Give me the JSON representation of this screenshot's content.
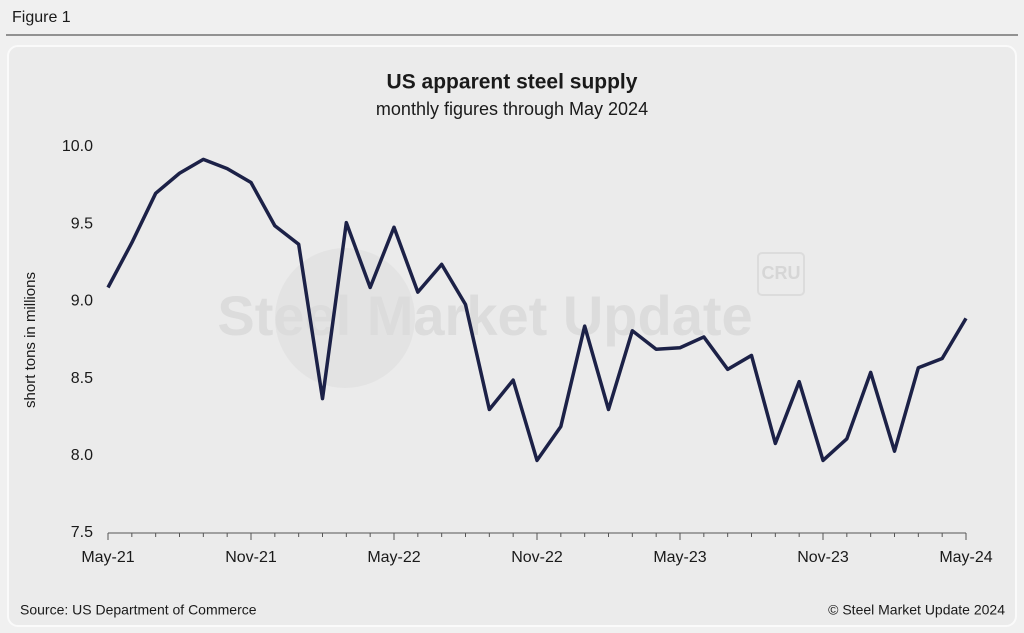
{
  "figure_label": "Figure 1",
  "source": "Source: US Department of Commerce",
  "copyright": "© Steel Market Update 2024",
  "chart_data": {
    "type": "line",
    "title": "US apparent steel supply",
    "subtitle": "monthly figures through May 2024",
    "y_label": "short tons in millions",
    "watermark": "Steel Market Update",
    "watermark_logo": "CRU",
    "categories": [
      "May-21",
      null,
      null,
      null,
      null,
      null,
      "Nov-21",
      null,
      null,
      null,
      null,
      null,
      "May-22",
      null,
      null,
      null,
      null,
      null,
      "Nov-22",
      null,
      null,
      null,
      null,
      null,
      "May-23",
      null,
      null,
      null,
      null,
      null,
      "Nov-23",
      null,
      null,
      null,
      null,
      null,
      "May-24"
    ],
    "values": [
      9.09,
      9.38,
      9.7,
      9.83,
      9.92,
      9.86,
      9.77,
      9.49,
      9.37,
      8.37,
      9.51,
      9.09,
      9.48,
      9.06,
      9.24,
      8.98,
      8.3,
      8.49,
      7.97,
      8.19,
      8.84,
      8.3,
      8.81,
      8.69,
      8.7,
      8.77,
      8.56,
      8.65,
      8.08,
      8.48,
      7.97,
      8.11,
      8.54,
      8.03,
      8.57,
      8.63,
      8.89
    ],
    "color": "#1c2147",
    "ylim": [
      7.5,
      10
    ],
    "yticks": [
      7.5,
      {
        "value": 8,
        "label": "8.0"
      },
      8.5,
      {
        "value": 9,
        "label": "9.0"
      },
      9.5,
      {
        "value": 10,
        "label": "10.0"
      }
    ],
    "grid": false
  }
}
